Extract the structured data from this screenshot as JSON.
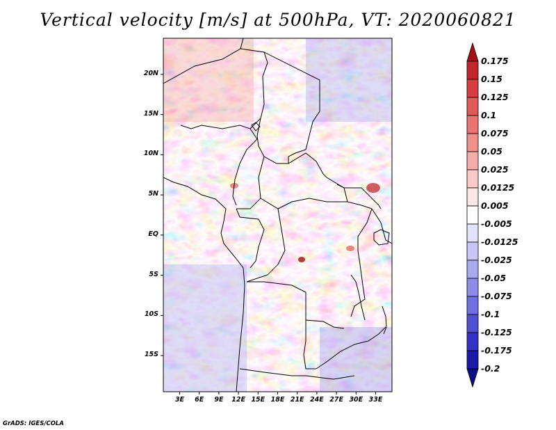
{
  "title": "Vertical velocity [m/s] at 500hPa, VT: 2020060821",
  "footer": "GrADS: IGES/COLA",
  "lat_labels": [
    "20N",
    "15N",
    "10N",
    "5N",
    "EQ",
    "5S",
    "10S",
    "15S"
  ],
  "lat_values": [
    20,
    15,
    10,
    5,
    0,
    -5,
    -10,
    -15
  ],
  "lon_labels": [
    "3E",
    "6E",
    "9E",
    "12E",
    "15E",
    "18E",
    "21E",
    "24E",
    "27E",
    "30E",
    "33E"
  ],
  "lon_values": [
    3,
    6,
    9,
    12,
    15,
    18,
    21,
    24,
    27,
    30,
    33
  ],
  "colorbar": {
    "labels": [
      "0.175",
      "0.15",
      "0.125",
      "0.1",
      "0.075",
      "0.05",
      "0.025",
      "0.0125",
      "0.005",
      "-0.005",
      "-0.0125",
      "-0.025",
      "-0.05",
      "-0.075",
      "-0.1",
      "-0.125",
      "-0.175",
      "-0.2"
    ],
    "colors": [
      "#a50f15",
      "#c0282c",
      "#d53f3f",
      "#e25a56",
      "#eb7470",
      "#f1908b",
      "#f6aca8",
      "#fac9c6",
      "#fde6e4",
      "#ffffff",
      "#e2e2fb",
      "#c7c7f5",
      "#aaaaef",
      "#8d8de9",
      "#6f6fdf",
      "#5151d3",
      "#3232c4",
      "#1a1aa6",
      "#0d0d86"
    ]
  }
}
